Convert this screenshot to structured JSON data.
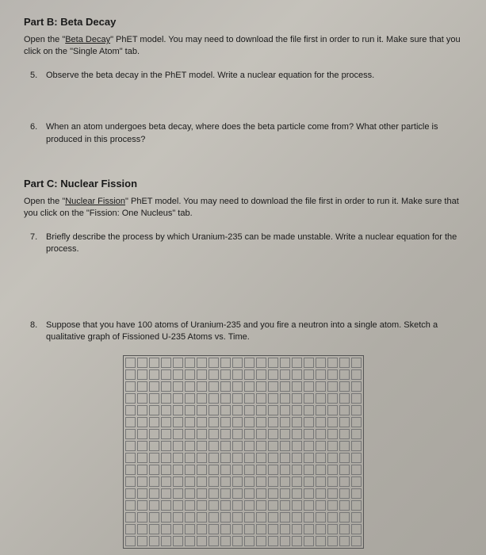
{
  "partB": {
    "header": "Part B: Beta Decay",
    "intro_pre": "Open the \"",
    "intro_link": "Beta Decay",
    "intro_post": "\" PhET model. You may need to download the file first in order to run it. Make sure that you click on the \"Single Atom\" tab.",
    "q5": {
      "num": "5.",
      "text": "Observe the beta decay in the PhET model. Write a nuclear equation for the process."
    },
    "q6": {
      "num": "6.",
      "text": "When an atom undergoes beta decay, where does the beta particle come from? What other particle is produced in this process?"
    }
  },
  "partC": {
    "header": "Part C: Nuclear Fission",
    "intro_pre": "Open the \"",
    "intro_link": "Nuclear Fission",
    "intro_post": "\" PhET model. You may need to download the file first in order to run it. Make sure that you click on the \"Fission: One Nucleus\" tab.",
    "q7": {
      "num": "7.",
      "text": "Briefly describe the process by which Uranium-235 can be made unstable. Write a nuclear equation for the process."
    },
    "q8": {
      "num": "8.",
      "text": "Suppose that you have 100 atoms of Uranium-235 and you fire a neutron into a single atom. Sketch a qualitative graph of Fissioned U-235 Atoms vs. Time."
    }
  },
  "graph": {
    "rows": 16,
    "cols": 20,
    "cell_size": 13,
    "border_color": "#777"
  }
}
